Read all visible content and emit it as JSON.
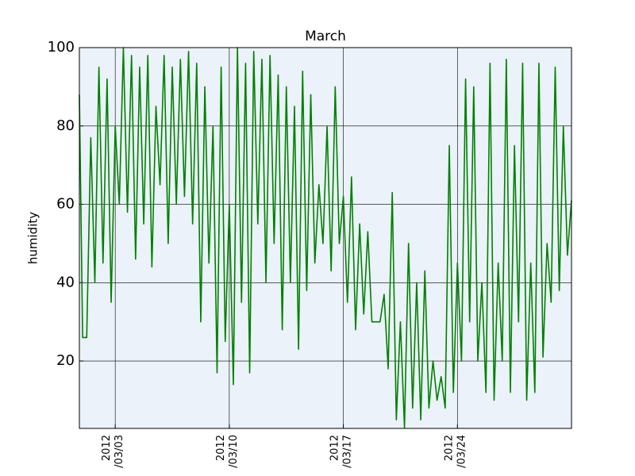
{
  "chart_data": {
    "type": "line",
    "title": "March",
    "ylabel": "humidity",
    "color": "#008000",
    "grid": true,
    "xlim": [
      0.8,
      31.0
    ],
    "xticks": [
      {
        "value": 3,
        "label": "2012\n/03/03"
      },
      {
        "value": 10,
        "label": "2012\n/03/10"
      },
      {
        "value": 17,
        "label": "2012\n/03/17"
      },
      {
        "value": 24,
        "label": "2012\n/03/24"
      }
    ],
    "ylim": [
      2.8,
      100
    ],
    "yticks": [
      20,
      40,
      60,
      80,
      100
    ],
    "x": [
      0.8,
      1,
      1.25,
      1.5,
      1.75,
      2,
      2.25,
      2.5,
      2.75,
      3,
      3.25,
      3.5,
      3.75,
      4,
      4.25,
      4.5,
      4.75,
      5,
      5.25,
      5.5,
      5.75,
      6,
      6.25,
      6.5,
      6.75,
      7,
      7.25,
      7.5,
      7.75,
      8,
      8.25,
      8.5,
      8.75,
      9,
      9.25,
      9.5,
      9.75,
      10,
      10.25,
      10.5,
      10.75,
      11,
      11.25,
      11.5,
      11.75,
      12,
      12.25,
      12.5,
      12.75,
      13,
      13.25,
      13.5,
      13.75,
      14,
      14.25,
      14.5,
      14.75,
      15,
      15.25,
      15.5,
      15.75,
      16,
      16.25,
      16.5,
      16.75,
      17,
      17.25,
      17.5,
      17.75,
      18,
      18.25,
      18.5,
      18.75,
      19,
      19.25,
      19.5,
      19.75,
      20,
      20.25,
      20.5,
      20.75,
      21,
      21.25,
      21.5,
      21.75,
      22,
      22.25,
      22.5,
      22.75,
      23,
      23.25,
      23.5,
      23.75,
      24,
      24.25,
      24.5,
      24.75,
      25,
      25.25,
      25.5,
      25.75,
      26,
      26.25,
      26.5,
      26.75,
      27,
      27.25,
      27.5,
      27.75,
      28,
      28.25,
      28.5,
      28.75,
      29,
      29.25,
      29.5,
      29.75,
      30,
      30.25,
      30.5,
      30.75,
      31
    ],
    "values": [
      88,
      26,
      26,
      77,
      40,
      95,
      45,
      92,
      35,
      80,
      60,
      100,
      58,
      98,
      46,
      95,
      55,
      98,
      44,
      85,
      65,
      98,
      50,
      95,
      60,
      97,
      62,
      99,
      55,
      96,
      30,
      90,
      45,
      80,
      17,
      95,
      25,
      60,
      14,
      100,
      35,
      96,
      17,
      99,
      55,
      97,
      40,
      98,
      50,
      93,
      28,
      90,
      40,
      85,
      23,
      94,
      38,
      88,
      45,
      65,
      50,
      80,
      43,
      90,
      50,
      62,
      35,
      67,
      28,
      55,
      32,
      53,
      30,
      30,
      30,
      37,
      18,
      63,
      5,
      30,
      3,
      50,
      8,
      40,
      5,
      43,
      8,
      20,
      10,
      16,
      8,
      75,
      12,
      45,
      20,
      92,
      30,
      90,
      20,
      40,
      12,
      96,
      10,
      45,
      20,
      97,
      12,
      75,
      30,
      96,
      10,
      45,
      12,
      96,
      21,
      50,
      35,
      95,
      38,
      80,
      47,
      61
    ]
  }
}
